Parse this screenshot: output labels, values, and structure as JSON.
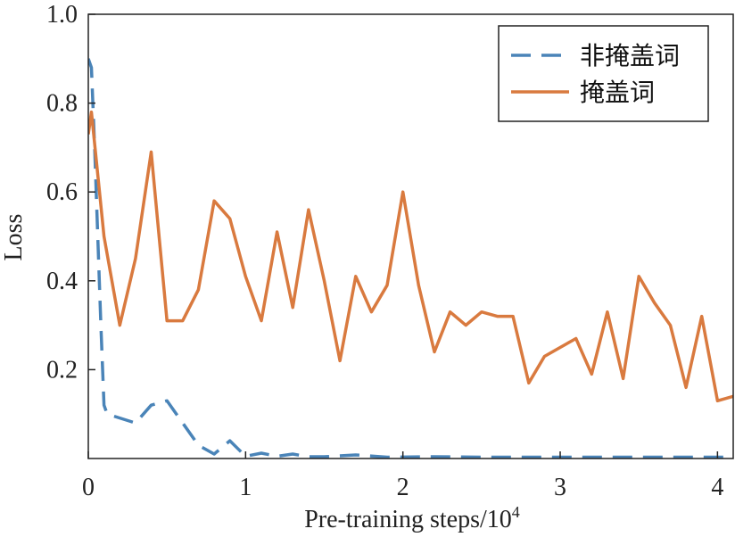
{
  "chart_data": {
    "type": "line",
    "title": "",
    "xlabel": "Pre-training steps/10",
    "xlabel_superscript": "4",
    "ylabel": "Loss",
    "xlim": [
      0,
      4.1
    ],
    "ylim": [
      0,
      1.0
    ],
    "x_ticks": [
      0,
      1,
      2,
      3,
      4
    ],
    "x_tick_labels": [
      "0",
      "1",
      "2",
      "3",
      "4"
    ],
    "y_ticks": [
      0.2,
      0.4,
      0.6,
      0.8,
      1.0
    ],
    "y_tick_labels": [
      "0.2",
      "0.4",
      "0.6",
      "0.8",
      "1.0"
    ],
    "grid": false,
    "legend_position": "top-right",
    "series": [
      {
        "name": "非掩盖词",
        "style": "dashed",
        "color": "#4a84b8",
        "x": [
          0.0,
          0.02,
          0.04,
          0.06,
          0.08,
          0.1,
          0.12,
          0.3,
          0.4,
          0.5,
          0.6,
          0.7,
          0.8,
          0.9,
          1.0,
          1.1,
          1.2,
          1.3,
          1.4,
          1.5,
          1.7,
          1.9,
          2.2,
          2.5,
          2.8,
          3.1,
          3.4,
          3.7,
          4.0,
          4.1
        ],
        "y": [
          0.9,
          0.88,
          0.7,
          0.5,
          0.3,
          0.12,
          0.1,
          0.08,
          0.12,
          0.13,
          0.08,
          0.03,
          0.01,
          0.04,
          0.005,
          0.012,
          0.005,
          0.01,
          0.004,
          0.004,
          0.008,
          0.003,
          0.004,
          0.003,
          0.003,
          0.003,
          0.003,
          0.003,
          0.003,
          0.003
        ]
      },
      {
        "name": "掩盖词",
        "style": "solid",
        "color": "#d97a3f",
        "x": [
          0.0,
          0.02,
          0.1,
          0.2,
          0.3,
          0.4,
          0.5,
          0.6,
          0.7,
          0.8,
          0.9,
          1.0,
          1.1,
          1.2,
          1.3,
          1.4,
          1.5,
          1.6,
          1.7,
          1.8,
          1.9,
          2.0,
          2.1,
          2.2,
          2.3,
          2.4,
          2.5,
          2.6,
          2.7,
          2.8,
          2.9,
          3.0,
          3.1,
          3.2,
          3.3,
          3.4,
          3.5,
          3.6,
          3.7,
          3.8,
          3.9,
          4.0,
          4.1
        ],
        "y": [
          0.73,
          0.78,
          0.5,
          0.3,
          0.45,
          0.69,
          0.31,
          0.31,
          0.38,
          0.58,
          0.54,
          0.41,
          0.31,
          0.51,
          0.34,
          0.56,
          0.4,
          0.22,
          0.41,
          0.33,
          0.39,
          0.6,
          0.39,
          0.24,
          0.33,
          0.3,
          0.33,
          0.32,
          0.32,
          0.17,
          0.23,
          0.25,
          0.27,
          0.19,
          0.33,
          0.18,
          0.41,
          0.35,
          0.3,
          0.16,
          0.32,
          0.13,
          0.14
        ]
      }
    ]
  }
}
